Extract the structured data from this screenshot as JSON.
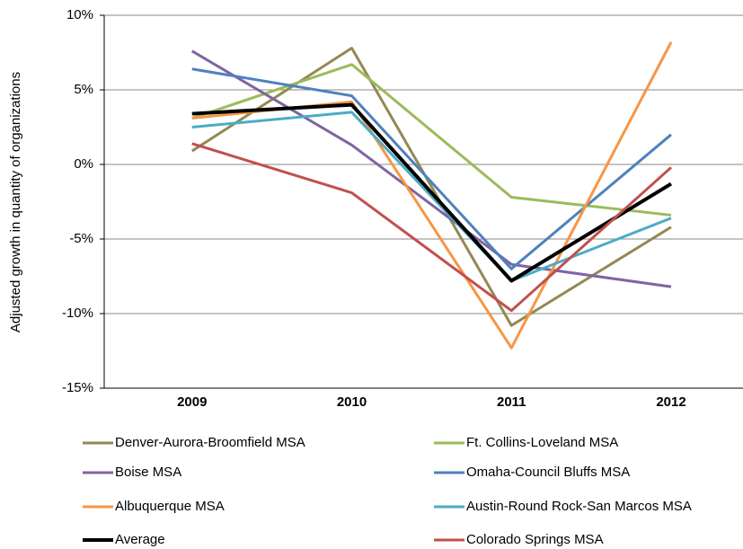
{
  "chart_data": {
    "type": "line",
    "y_axis_label": "Adjusted growth in quantity of organizations",
    "categories": [
      "2009",
      "2010",
      "2011",
      "2012"
    ],
    "series": [
      {
        "name": "Denver-Aurora-Broomfield MSA",
        "color": "#938953",
        "values": [
          0.9,
          7.8,
          -10.8,
          -4.2
        ]
      },
      {
        "name": "Ft. Collins-Loveland MSA",
        "color": "#9bbb59",
        "values": [
          3.1,
          6.7,
          -2.2,
          -3.4
        ]
      },
      {
        "name": "Boise MSA",
        "color": "#8064a2",
        "values": [
          7.6,
          1.3,
          -6.7,
          -8.2
        ]
      },
      {
        "name": "Omaha-Council Bluffs MSA",
        "color": "#4f81bd",
        "values": [
          6.4,
          4.6,
          -7.0,
          2.0
        ]
      },
      {
        "name": "Albuquerque MSA",
        "color": "#f79646",
        "values": [
          3.1,
          4.2,
          -12.3,
          8.2
        ]
      },
      {
        "name": "Austin-Round Rock-San Marcos MSA",
        "color": "#4bacc6",
        "values": [
          2.5,
          3.5,
          -7.8,
          -3.6
        ]
      },
      {
        "name": "Average",
        "color": "#000000",
        "values": [
          3.4,
          4.0,
          -7.8,
          -1.3
        ]
      },
      {
        "name": "Colorado Springs MSA",
        "color": "#c0504d",
        "values": [
          1.4,
          -1.9,
          -9.8,
          -0.2
        ]
      }
    ],
    "ylim": [
      -15,
      10
    ],
    "yticks": [
      {
        "value": -15,
        "label": "-15%"
      },
      {
        "value": -10,
        "label": "-10%"
      },
      {
        "value": -5,
        "label": "-5%"
      },
      {
        "value": 0,
        "label": "0%"
      },
      {
        "value": 5,
        "label": "5%"
      },
      {
        "value": 10,
        "label": "10%"
      }
    ],
    "grid": true,
    "legend": "bottom"
  }
}
